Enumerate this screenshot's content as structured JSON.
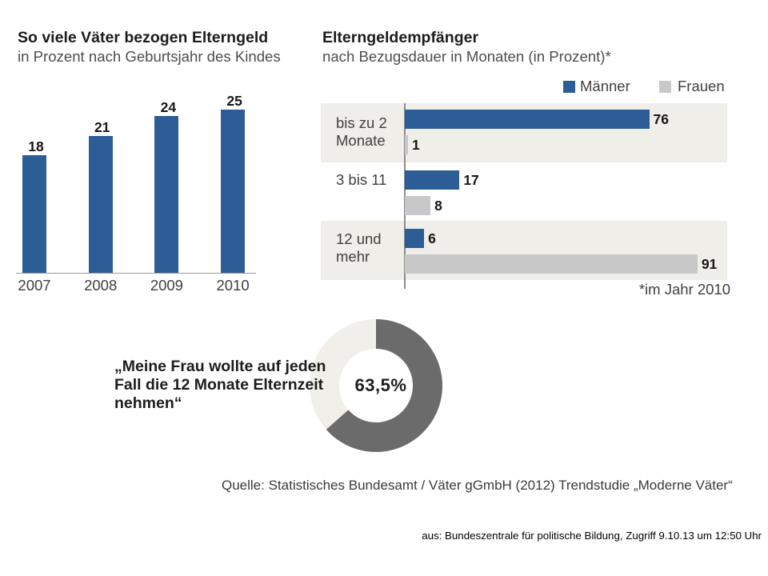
{
  "colors": {
    "background": "#ffffff",
    "row_band": "#f0eee8",
    "axis_line": "#8c8c8c",
    "baseline": "#9a9a9a"
  },
  "chart_data": [
    {
      "type": "bar",
      "title": "So viele Väter bezogen Elterngeld",
      "subtitle": "in Prozent nach Geburtsjahr des Kindes",
      "categories": [
        "2007",
        "2008",
        "2009",
        "2010"
      ],
      "values": [
        18,
        21,
        24,
        25
      ],
      "color": "#2d5d96",
      "data_labels": true,
      "grid": false
    },
    {
      "type": "bar",
      "orientation": "horizontal",
      "title": "Elterngeldempfänger",
      "subtitle": "nach Bezugsdauer in Monaten (in Prozent)*",
      "categories": [
        "bis zu 2 Monate",
        "3 bis 11",
        "12 und mehr"
      ],
      "series": [
        {
          "name": "Männer",
          "values": [
            76,
            17,
            6
          ],
          "color": "#2d5d96"
        },
        {
          "name": "Frauen",
          "values": [
            1,
            8,
            91
          ],
          "color": "#c8c8c8"
        }
      ],
      "legend": "top-right",
      "footnote": "*im Jahr 2010",
      "data_labels": true,
      "grid": false
    },
    {
      "type": "pie",
      "variant": "donut",
      "caption": "„Meine Frau wollte auf jeden Fall die 12 Monate Elternzeit nehmen“",
      "value": 63.5,
      "value_label": "63,5%",
      "colors": [
        "#6b6b6b",
        "#f0efea"
      ]
    }
  ],
  "source": "Quelle: Statistisches Bundesamt / Väter gGmbH (2012) Trendstudie „Moderne Väter“",
  "attribution": "aus: Bundeszentrale für politische Bildung, Zugriff 9.10.13 um 12:50 Uhr"
}
